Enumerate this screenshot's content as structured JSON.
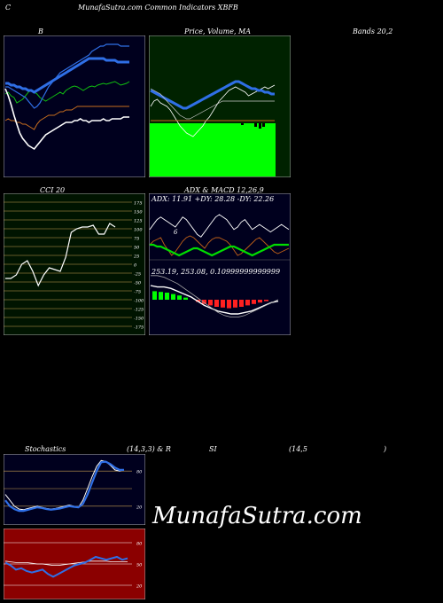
{
  "header": {
    "left": "C",
    "center": "MunafaSutra.com Common Indicators XBFB"
  },
  "titles": {
    "bollinger": "B",
    "price_ma": "Price, Volume, MA",
    "bands": "Bands 20,2",
    "cci": "CCI 20",
    "adx_macd": "ADX  & MACD 12,26,9",
    "stoch_left": "Stochastics",
    "stoch_params": "(14,3,3) & R",
    "rsi_si": "SI",
    "rsi_params": "(14,5",
    "rsi_close": ")"
  },
  "watermark": "MunafaSutra.com",
  "colors": {
    "navy_bg": "#00001e",
    "green_bg": "#002200",
    "cci_bg": "#001400",
    "rsi_bg": "#8b0000",
    "band_blue": "#2f6fe6",
    "upper_green": "#10c010",
    "lower_orange": "#c86e1e",
    "volume_green": "#00ff00"
  },
  "chart_data": [
    {
      "type": "line",
      "panel": "bollinger",
      "series": [
        {
          "values": [
            66,
            64,
            68,
            70,
            76,
            74,
            72,
            68,
            64,
            62,
            64,
            66,
            70,
            72,
            74,
            72,
            70,
            68,
            66,
            64,
            66,
            62,
            60,
            58,
            57,
            58,
            60,
            62,
            60,
            58,
            57,
            58,
            56,
            55,
            54,
            55,
            54,
            53,
            52,
            54,
            56,
            55,
            54,
            52
          ]
        },
        {
          "values": [
            80,
            80,
            82,
            82,
            84,
            84,
            86,
            86,
            88,
            88,
            90,
            88,
            86,
            84,
            82,
            80,
            78,
            76,
            74,
            72,
            70,
            68,
            66,
            64,
            62,
            60,
            58,
            56,
            54,
            52,
            52,
            52,
            52,
            52,
            52,
            54,
            54,
            54,
            54,
            56,
            56,
            56,
            56,
            56
          ]
        },
        {
          "values": [
            88,
            88,
            90,
            92,
            94,
            96,
            98,
            100,
            104,
            108,
            112,
            110,
            106,
            100,
            94,
            88,
            84,
            80,
            76,
            72,
            70,
            68,
            66,
            64,
            62,
            60,
            58,
            56,
            54,
            52,
            48,
            46,
            44,
            42,
            42,
            40,
            40,
            40,
            40,
            40,
            42,
            42,
            42,
            42
          ]
        },
        {
          "values": [
            96,
            94,
            96,
            96,
            98,
            98,
            100,
            100,
            102,
            104,
            106,
            100,
            96,
            94,
            92,
            90,
            90,
            90,
            88,
            86,
            86,
            84,
            84,
            84,
            82,
            80,
            80,
            80,
            80,
            80,
            80,
            80,
            80,
            80,
            80,
            80,
            80,
            80,
            80,
            80,
            80,
            80,
            80,
            80
          ]
        },
        {
          "values": [
            20,
            28,
            38,
            50,
            60,
            70,
            76,
            80,
            84,
            86,
            88,
            84,
            80,
            76,
            72,
            70,
            68,
            66,
            64,
            62,
            60,
            58,
            58,
            58,
            56,
            56,
            54,
            56,
            56,
            58,
            56,
            56,
            56,
            56,
            54,
            56,
            56,
            54,
            54,
            54,
            54,
            52,
            52,
            52
          ]
        }
      ]
    },
    {
      "type": "bar",
      "panel": "price_ma_volume",
      "series": [
        {
          "values": [
            40,
            46,
            48,
            44,
            42,
            40,
            36,
            30,
            24,
            18,
            14,
            10,
            8,
            6,
            10,
            14,
            18,
            24,
            28,
            34,
            40,
            46,
            50,
            54,
            58,
            60,
            62,
            60,
            58,
            56,
            52,
            54,
            56,
            58,
            60,
            62,
            60,
            62,
            64
          ]
        },
        {
          "values": [
            52,
            54,
            56,
            58,
            60,
            62,
            64,
            66,
            68,
            70,
            72,
            72,
            70,
            68,
            66,
            64,
            62,
            60,
            58,
            56,
            54,
            52,
            50,
            48,
            46,
            44,
            42,
            42,
            44,
            46,
            48,
            50,
            50,
            52,
            52,
            54,
            54,
            56,
            56
          ]
        },
        {
          "values": [
            30,
            32,
            34,
            36,
            40,
            44,
            48,
            52,
            56,
            60,
            62,
            64,
            64,
            62,
            60,
            58,
            56,
            54,
            52,
            50,
            48,
            46,
            44,
            44,
            44,
            44,
            44,
            44,
            44,
            44,
            44,
            44,
            44,
            44,
            44,
            44,
            44,
            44,
            44
          ]
        },
        {
          "values": [
            40,
            40,
            40,
            40,
            40,
            40,
            40,
            40,
            40,
            40,
            40,
            40,
            40,
            40,
            40,
            40,
            40,
            40,
            40,
            40,
            40,
            40,
            40,
            40,
            40,
            40,
            40,
            40,
            40,
            40,
            40,
            40,
            40,
            40,
            40,
            40,
            40,
            40,
            40
          ]
        }
      ]
    },
    {
      "type": "line",
      "panel": "cci",
      "y": [
        175,
        150,
        125,
        100,
        75,
        50,
        25,
        0,
        -25,
        -50,
        -75,
        -100,
        -125,
        -150,
        -175
      ],
      "ylim": [
        -200,
        200
      ],
      "series": [
        {
          "values": [
            -40,
            -40,
            -30,
            0,
            10,
            -20,
            -60,
            -30,
            -10,
            -15,
            -20,
            20,
            90,
            100,
            105,
            105,
            110,
            85,
            85,
            115,
            105
          ]
        }
      ]
    },
    {
      "type": "line",
      "panel": "adx",
      "adx": "11.91",
      "di_plus": "28.28",
      "di_minus": "22.26",
      "series": [
        {
          "values": [
            28,
            32,
            36,
            38,
            36,
            34,
            32,
            30,
            34,
            38,
            36,
            32,
            28,
            24,
            22,
            26,
            30,
            34,
            38,
            40,
            38,
            36,
            32,
            28,
            30,
            34,
            36,
            32,
            28,
            30,
            32,
            30,
            28,
            26,
            28,
            30,
            32,
            30,
            28
          ]
        },
        {
          "values": [
            18,
            14,
            12,
            10,
            18,
            24,
            30,
            26,
            20,
            14,
            10,
            8,
            10,
            14,
            18,
            22,
            16,
            12,
            10,
            10,
            12,
            14,
            18,
            24,
            30,
            28,
            24,
            20,
            16,
            12,
            10,
            14,
            18,
            22,
            26,
            28,
            26,
            24,
            22
          ]
        },
        {
          "values": [
            12,
            12,
            14,
            14,
            16,
            18,
            20,
            22,
            24,
            22,
            20,
            18,
            16,
            16,
            18,
            20,
            22,
            24,
            22,
            20,
            18,
            16,
            14,
            14,
            16,
            18,
            20,
            22,
            24,
            22,
            20,
            18,
            16,
            14,
            12,
            12,
            12,
            12,
            12
          ]
        }
      ]
    },
    {
      "type": "bar",
      "panel": "macd",
      "macd": "253.19",
      "signal": "253.08",
      "histogram": "0.10999999999999",
      "series": [
        {
          "values": [
            12,
            11,
            10,
            8,
            6,
            3,
            0,
            -3,
            -6,
            -8,
            -10,
            -11,
            -12,
            -11,
            -10,
            -8,
            -6,
            -4,
            -2,
            0
          ]
        },
        {
          "values": [
            10,
            9,
            9,
            8,
            6,
            4,
            2,
            -1,
            -4,
            -6,
            -8,
            -9,
            -10,
            -10,
            -9,
            -8,
            -6,
            -4,
            -2,
            -1
          ]
        },
        {
          "values": [
            14,
            14,
            13,
            11,
            9,
            6,
            3,
            0,
            -3,
            -6,
            -9,
            -11,
            -12,
            -12,
            -11,
            -9,
            -7,
            -5,
            -3,
            -1
          ]
        }
      ]
    },
    {
      "type": "line",
      "panel": "stochastics",
      "series": [
        {
          "values": [
            40,
            30,
            20,
            15,
            14,
            16,
            18,
            20,
            18,
            16,
            15,
            16,
            18,
            20,
            22,
            20,
            18,
            30,
            50,
            70,
            88,
            98,
            96,
            90,
            82,
            80,
            82
          ]
        },
        {
          "values": [
            30,
            20,
            15,
            12,
            12,
            14,
            16,
            18,
            17,
            15,
            14,
            15,
            16,
            18,
            20,
            19,
            18,
            24,
            40,
            60,
            80,
            95,
            96,
            92,
            86,
            82,
            82
          ]
        }
      ]
    },
    {
      "type": "line",
      "panel": "rsi",
      "series": [
        {
          "values": [
            52,
            48,
            42,
            44,
            40,
            38,
            40,
            42,
            36,
            32,
            36,
            40,
            44,
            48,
            50,
            52,
            56,
            60,
            58,
            56,
            58,
            60,
            56,
            58
          ]
        },
        {
          "values": [
            54,
            53,
            52,
            52,
            52,
            51,
            50,
            50,
            49,
            48,
            48,
            49,
            50,
            51,
            52,
            53,
            54,
            54,
            54,
            54,
            53,
            53,
            53,
            53
          ]
        }
      ]
    }
  ]
}
